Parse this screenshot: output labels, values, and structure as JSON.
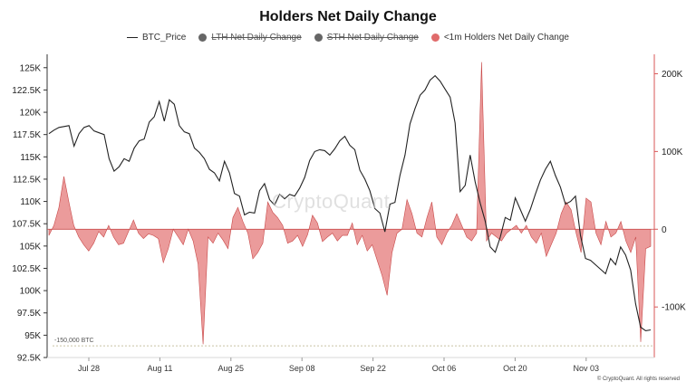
{
  "title": "Holders Net Daily Change",
  "legend": [
    {
      "label": "BTC_Price",
      "hidden": false,
      "color": "#222222",
      "kind": "line"
    },
    {
      "label": "LTH Net Daily Change",
      "hidden": true,
      "color": "#666666",
      "kind": "dot"
    },
    {
      "label": "STH Net Daily Change",
      "hidden": true,
      "color": "#666666",
      "kind": "dot"
    },
    {
      "label": "<1m Holders Net Daily Change",
      "hidden": false,
      "color": "#e06b6b",
      "kind": "dot"
    }
  ],
  "watermark": "CryptoQuant",
  "footer": "© CryptoQuant. All rights reserved",
  "colors": {
    "price": "#222222",
    "area_fill": "#e88a8a",
    "area_stroke": "#c84848",
    "axis_right": "#d95757",
    "ref_line": "#c7c4a5"
  },
  "chart_data": {
    "type": "line+area",
    "title": "Holders Net Daily Change",
    "x_ticks": [
      "Jul 28",
      "Aug 11",
      "Aug 25",
      "Sep 08",
      "Sep 22",
      "Oct 06",
      "Oct 20",
      "Nov 03"
    ],
    "y_left": {
      "ylim": [
        92500,
        126500
      ],
      "ticks": [
        "125K",
        "122.5K",
        "120K",
        "117.5K",
        "115K",
        "112.5K",
        "110K",
        "107.5K",
        "105K",
        "102.5K",
        "100K",
        "97.5K",
        "95K",
        "92.5K"
      ]
    },
    "y_right": {
      "ylim": [
        -165000,
        225000
      ],
      "ticks": [
        "200K",
        "100K",
        "0",
        "-100K"
      ]
    },
    "annotation": {
      "label": "-150,000 BTC",
      "value": -150000
    },
    "series": [
      {
        "name": "BTC_Price",
        "axis": "left",
        "kind": "line",
        "values": [
          117600,
          118000,
          118300,
          118400,
          118500,
          116200,
          117600,
          118300,
          118500,
          117900,
          117700,
          117500,
          114800,
          113400,
          113900,
          114800,
          114500,
          116000,
          116800,
          117000,
          118900,
          119500,
          121200,
          119000,
          121400,
          120900,
          118500,
          117800,
          117600,
          116000,
          115500,
          114800,
          113600,
          113200,
          112300,
          114500,
          113200,
          110900,
          110600,
          108500,
          108800,
          108700,
          111200,
          112000,
          110200,
          109600,
          110800,
          110300,
          110800,
          110600,
          111500,
          112700,
          114600,
          115600,
          115800,
          115700,
          115200,
          115900,
          116800,
          117300,
          116300,
          115800,
          113500,
          112500,
          111200,
          109200,
          108700,
          106600,
          109700,
          109900,
          112900,
          115200,
          118700,
          120400,
          121900,
          122500,
          123600,
          124100,
          123500,
          122600,
          121700,
          118800,
          111100,
          111800,
          115200,
          112200,
          109800,
          107800,
          104900,
          104300,
          106000,
          108200,
          107900,
          110400,
          109100,
          107800,
          109100,
          110800,
          112400,
          113600,
          114500,
          112900,
          111600,
          109700,
          110000,
          110600,
          106200,
          103600,
          103400,
          102900,
          102400,
          101900,
          103600,
          102900,
          104900,
          104000,
          102300,
          98500,
          95900,
          95500,
          95600
        ]
      },
      {
        "name": "<1m Holders Net Daily Change",
        "axis": "right",
        "kind": "area",
        "values": [
          -8000,
          5000,
          28000,
          68000,
          35000,
          5000,
          -10000,
          -20000,
          -28000,
          -18000,
          -3000,
          -10000,
          5000,
          -10000,
          -20000,
          -18000,
          -3000,
          12000,
          -5000,
          -12000,
          -6000,
          -8000,
          -12000,
          -43000,
          -25000,
          0,
          -10000,
          -20000,
          0,
          -15000,
          -45000,
          -148000,
          -10000,
          -18000,
          -5000,
          -14000,
          -25000,
          15000,
          28000,
          10000,
          -5000,
          -38000,
          -30000,
          -18000,
          35000,
          22000,
          15000,
          5000,
          -18000,
          -15000,
          -8000,
          -22000,
          -7000,
          18000,
          8000,
          -16000,
          -10000,
          -5000,
          -15000,
          -8000,
          -8000,
          8000,
          -20000,
          -8000,
          -28000,
          -20000,
          -40000,
          -60000,
          -85000,
          -30000,
          -5000,
          0,
          38000,
          20000,
          -5000,
          -10000,
          15000,
          35000,
          -10000,
          -20000,
          -5000,
          5000,
          20000,
          5000,
          -10000,
          -15000,
          -5000,
          215000,
          -15000,
          -5000,
          -10000,
          -15000,
          -5000,
          0,
          5000,
          -5000,
          5000,
          -10000,
          -18000,
          -5000,
          -35000,
          -20000,
          -5000,
          20000,
          35000,
          25000,
          -5000,
          -30000,
          40000,
          35000,
          -5000,
          -20000,
          10000,
          -10000,
          -5000,
          10000,
          -15000,
          -30000,
          -10000,
          -145000,
          -25000,
          -22000
        ]
      }
    ]
  }
}
